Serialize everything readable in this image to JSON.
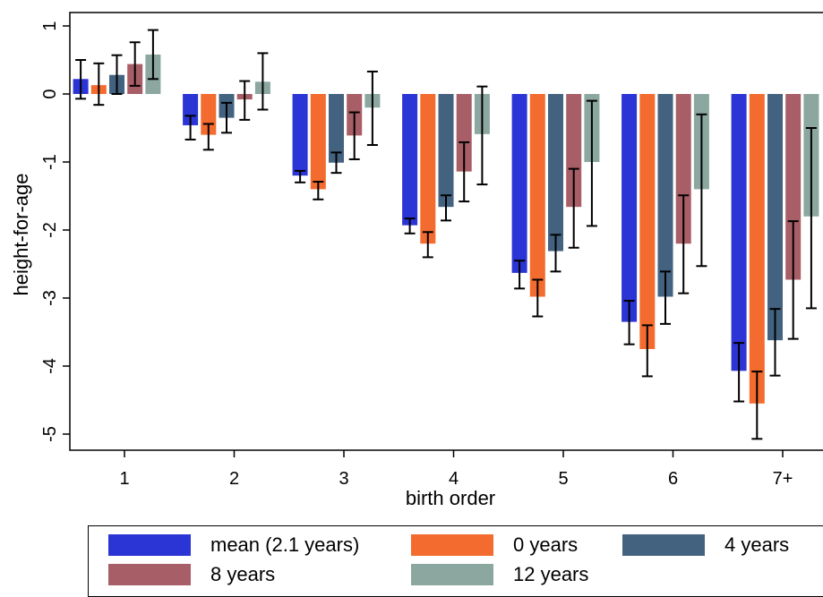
{
  "chart_data": {
    "type": "bar",
    "title": "",
    "xlabel": "birth order",
    "ylabel": "height-for-age",
    "ylim": [
      -5.3,
      1.2
    ],
    "yticks": [
      1,
      0,
      -1,
      -2,
      -3,
      -4,
      -5
    ],
    "ytick_labels": [
      "1",
      "0",
      "-1",
      "-2",
      "-3",
      "-4",
      "-5"
    ],
    "categories": [
      "1",
      "2",
      "3",
      "4",
      "5",
      "6",
      "7+"
    ],
    "grid": false,
    "legend_position": "bottom",
    "series": [
      {
        "name": "mean (2.1 years)",
        "color": "#2b34d4",
        "values": [
          0.22,
          -0.46,
          -1.2,
          -1.93,
          -2.63,
          -3.35,
          -4.07
        ],
        "ci_low": [
          -0.07,
          -0.67,
          -1.3,
          -2.05,
          -2.86,
          -3.68,
          -4.52
        ],
        "ci_high": [
          0.5,
          -0.32,
          -1.13,
          -1.83,
          -2.45,
          -3.04,
          -3.66
        ]
      },
      {
        "name": "0 years",
        "color": "#f46b2f",
        "values": [
          0.13,
          -0.6,
          -1.4,
          -2.2,
          -2.98,
          -3.75,
          -4.55
        ],
        "ci_low": [
          -0.16,
          -0.82,
          -1.55,
          -2.4,
          -3.27,
          -4.15,
          -5.07
        ],
        "ci_high": [
          0.45,
          -0.44,
          -1.29,
          -2.03,
          -2.73,
          -3.4,
          -4.08
        ]
      },
      {
        "name": "4 years",
        "color": "#43627f",
        "values": [
          0.28,
          -0.35,
          -1.01,
          -1.66,
          -2.31,
          -2.98,
          -3.62
        ],
        "ci_low": [
          0.0,
          -0.57,
          -1.16,
          -1.86,
          -2.61,
          -3.38,
          -4.14
        ],
        "ci_high": [
          0.57,
          -0.13,
          -0.86,
          -1.49,
          -2.07,
          -2.61,
          -3.16
        ]
      },
      {
        "name": "8 years",
        "color": "#a85e66",
        "values": [
          0.44,
          -0.08,
          -0.61,
          -1.14,
          -1.66,
          -2.2,
          -2.73
        ],
        "ci_low": [
          0.12,
          -0.38,
          -0.96,
          -1.58,
          -2.26,
          -2.93,
          -3.6
        ],
        "ci_high": [
          0.76,
          0.19,
          -0.27,
          -0.71,
          -1.1,
          -1.49,
          -1.87
        ]
      },
      {
        "name": "12 years",
        "color": "#8ba79f",
        "values": [
          0.58,
          0.18,
          -0.2,
          -0.59,
          -1.0,
          -1.4,
          -1.8
        ],
        "ci_low": [
          0.22,
          -0.23,
          -0.75,
          -1.33,
          -1.94,
          -2.53,
          -3.15
        ],
        "ci_high": [
          0.94,
          0.6,
          0.33,
          0.11,
          -0.1,
          -0.3,
          -0.5
        ]
      }
    ]
  }
}
